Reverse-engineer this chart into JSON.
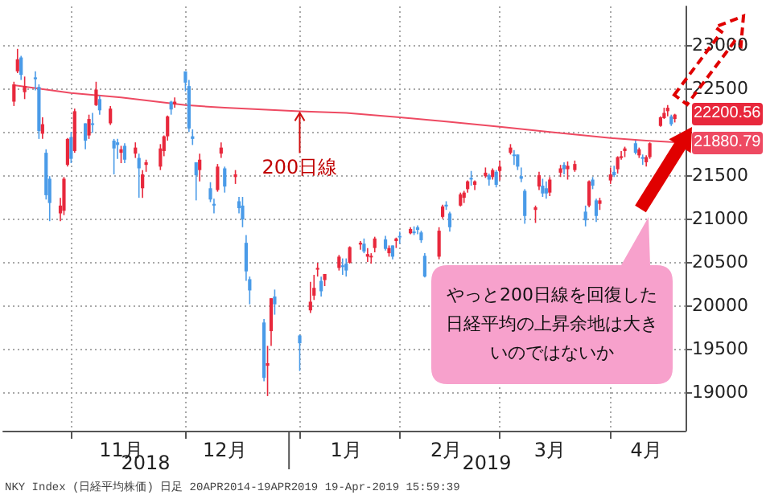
{
  "chart_data": {
    "type": "candlestick",
    "x": [
      "2018-10-16",
      "2018-10-17",
      "2018-10-18",
      "2018-10-19",
      "2018-10-22",
      "2018-10-23",
      "2018-10-24",
      "2018-10-25",
      "2018-10-26",
      "2018-10-29",
      "2018-10-30",
      "2018-10-31",
      "2018-11-01",
      "2018-11-02",
      "2018-11-05",
      "2018-11-06",
      "2018-11-07",
      "2018-11-08",
      "2018-11-09",
      "2018-11-12",
      "2018-11-13",
      "2018-11-14",
      "2018-11-15",
      "2018-11-16",
      "2018-11-19",
      "2018-11-20",
      "2018-11-21",
      "2018-11-22",
      "2018-11-26",
      "2018-11-27",
      "2018-11-28",
      "2018-11-29",
      "2018-11-30",
      "2018-12-03",
      "2018-12-04",
      "2018-12-05",
      "2018-12-06",
      "2018-12-07",
      "2018-12-10",
      "2018-12-11",
      "2018-12-12",
      "2018-12-13",
      "2018-12-14",
      "2018-12-17",
      "2018-12-18",
      "2018-12-19",
      "2018-12-20",
      "2018-12-21",
      "2018-12-25",
      "2018-12-26",
      "2018-12-27",
      "2018-12-28",
      "2019-01-04",
      "2019-01-07",
      "2019-01-08",
      "2019-01-09",
      "2019-01-10",
      "2019-01-11",
      "2019-01-15",
      "2019-01-16",
      "2019-01-17",
      "2019-01-18",
      "2019-01-21",
      "2019-01-22",
      "2019-01-23",
      "2019-01-24",
      "2019-01-25",
      "2019-01-28",
      "2019-01-29",
      "2019-01-30",
      "2019-01-31",
      "2019-02-01",
      "2019-02-04",
      "2019-02-05",
      "2019-02-06",
      "2019-02-07",
      "2019-02-08",
      "2019-02-12",
      "2019-02-13",
      "2019-02-14",
      "2019-02-15",
      "2019-02-18",
      "2019-02-19",
      "2019-02-20",
      "2019-02-21",
      "2019-02-22",
      "2019-02-25",
      "2019-02-26",
      "2019-02-27",
      "2019-02-28",
      "2019-03-01",
      "2019-03-04",
      "2019-03-05",
      "2019-03-06",
      "2019-03-07",
      "2019-03-08",
      "2019-03-11",
      "2019-03-12",
      "2019-03-13",
      "2019-03-14",
      "2019-03-15",
      "2019-03-18",
      "2019-03-19",
      "2019-03-20",
      "2019-03-22",
      "2019-03-25",
      "2019-03-26",
      "2019-03-27",
      "2019-03-28",
      "2019-03-29",
      "2019-04-01",
      "2019-04-02",
      "2019-04-03",
      "2019-04-04",
      "2019-04-05",
      "2019-04-08",
      "2019-04-09",
      "2019-04-10",
      "2019-04-11",
      "2019-04-12",
      "2019-04-15",
      "2019-04-16",
      "2019-04-17",
      "2019-04-18",
      "2019-04-19"
    ],
    "series": [
      {
        "ohlc": [
          [
            22350,
            22580,
            22300,
            22550
          ],
          [
            22700,
            22960,
            22680,
            22840
          ],
          [
            22860,
            22880,
            22600,
            22660
          ],
          [
            22460,
            22640,
            22380,
            22530
          ],
          [
            22630,
            22700,
            22480,
            22610
          ],
          [
            22520,
            22550,
            21920,
            22010
          ],
          [
            21980,
            22170,
            21920,
            22090
          ],
          [
            21760,
            21800,
            21220,
            21270
          ],
          [
            21460,
            21490,
            20970,
            21180
          ],
          [
            21060,
            21240,
            20970,
            21150
          ],
          [
            21090,
            21480,
            21040,
            21460
          ],
          [
            21620,
            21930,
            21600,
            21920
          ],
          [
            21940,
            22000,
            21640,
            21690
          ],
          [
            21780,
            22270,
            21760,
            22240
          ],
          [
            22100,
            22100,
            21800,
            21900
          ],
          [
            21960,
            22200,
            21920,
            22150
          ],
          [
            22100,
            22220,
            21990,
            22090
          ],
          [
            22310,
            22580,
            22300,
            22490
          ],
          [
            22380,
            22420,
            22200,
            22250
          ],
          [
            22100,
            22300,
            22080,
            22270
          ],
          [
            21900,
            21920,
            21510,
            21810
          ],
          [
            21880,
            21920,
            21690,
            21850
          ],
          [
            21760,
            21840,
            21640,
            21800
          ],
          [
            21840,
            21870,
            21640,
            21680
          ],
          [
            21750,
            21880,
            21700,
            21820
          ],
          [
            21700,
            21750,
            21240,
            21580
          ],
          [
            21350,
            21560,
            21240,
            21510
          ],
          [
            21620,
            21680,
            21540,
            21650
          ],
          [
            21600,
            21860,
            21560,
            21810
          ],
          [
            21780,
            21960,
            21720,
            21950
          ],
          [
            21950,
            22190,
            21900,
            22180
          ],
          [
            22350,
            22360,
            22200,
            22260
          ],
          [
            22320,
            22400,
            22280,
            22350
          ],
          [
            22700,
            22700,
            22470,
            22570
          ],
          [
            22530,
            22600,
            22000,
            22040
          ],
          [
            21950,
            22030,
            21850,
            21920
          ],
          [
            21650,
            21650,
            21210,
            21500
          ],
          [
            21560,
            21750,
            21430,
            21680
          ],
          [
            21350,
            21420,
            21190,
            21220
          ],
          [
            21170,
            21230,
            21060,
            21150
          ],
          [
            21330,
            21630,
            21310,
            21600
          ],
          [
            21750,
            21880,
            21700,
            21820
          ],
          [
            21580,
            21600,
            21300,
            21370
          ],
          [
            21480,
            21560,
            21400,
            21510
          ],
          [
            21200,
            21250,
            21060,
            21120
          ],
          [
            21150,
            21250,
            20900,
            20990
          ],
          [
            20720,
            20810,
            20280,
            20390
          ],
          [
            20300,
            20330,
            20010,
            20170
          ],
          [
            19800,
            19840,
            19120,
            19160
          ],
          [
            19300,
            19530,
            18950,
            19330
          ],
          [
            19700,
            20080,
            19530,
            20080
          ],
          [
            20100,
            20180,
            19890,
            20010
          ],
          [
            19650,
            19660,
            19240,
            19560
          ],
          [
            19940,
            20270,
            19910,
            20040
          ],
          [
            20110,
            20350,
            20060,
            20200
          ],
          [
            20410,
            20490,
            20330,
            20430
          ],
          [
            20280,
            20330,
            20100,
            20160
          ],
          [
            20290,
            20360,
            20220,
            20360
          ],
          [
            20430,
            20580,
            20400,
            20560
          ],
          [
            20460,
            20540,
            20350,
            20440
          ],
          [
            20480,
            20540,
            20330,
            20400
          ],
          [
            20490,
            20680,
            20480,
            20670
          ],
          [
            20700,
            20740,
            20640,
            20720
          ],
          [
            20710,
            20770,
            20600,
            20620
          ],
          [
            20560,
            20660,
            20500,
            20590
          ],
          [
            20560,
            20600,
            20480,
            20570
          ],
          [
            20660,
            20790,
            20610,
            20770
          ],
          [
            20760,
            20800,
            20630,
            20650
          ],
          [
            20600,
            20690,
            20560,
            20660
          ],
          [
            20690,
            20690,
            20530,
            20560
          ],
          [
            20740,
            20780,
            20660,
            20770
          ],
          [
            20800,
            20850,
            20710,
            20790
          ],
          [
            20830,
            20900,
            20820,
            20880
          ],
          [
            20850,
            20910,
            20810,
            20840
          ],
          [
            20900,
            20920,
            20820,
            20870
          ],
          [
            20840,
            20860,
            20720,
            20750
          ],
          [
            20570,
            20600,
            20320,
            20330
          ],
          [
            20560,
            20900,
            20530,
            20860
          ],
          [
            21020,
            21160,
            21000,
            21140
          ],
          [
            21160,
            21200,
            21100,
            21140
          ],
          [
            21060,
            21080,
            20850,
            20900
          ],
          [
            21150,
            21300,
            21140,
            21280
          ],
          [
            21240,
            21320,
            21180,
            21300
          ],
          [
            21340,
            21440,
            21300,
            21430
          ],
          [
            21470,
            21550,
            21380,
            21460
          ],
          [
            21390,
            21440,
            21330,
            21430
          ],
          [
            21490,
            21590,
            21470,
            21530
          ],
          [
            21500,
            21520,
            21380,
            21450
          ],
          [
            21480,
            21580,
            21450,
            21560
          ],
          [
            21540,
            21560,
            21360,
            21390
          ],
          [
            21550,
            21670,
            21440,
            21600
          ],
          [
            21760,
            21860,
            21740,
            21820
          ],
          [
            21740,
            21790,
            21620,
            21730
          ],
          [
            21740,
            21740,
            21560,
            21600
          ],
          [
            21490,
            21590,
            21420,
            21460
          ],
          [
            21320,
            21340,
            20940,
            21030
          ],
          [
            21100,
            21150,
            20950,
            21130
          ],
          [
            21370,
            21540,
            21330,
            21500
          ],
          [
            21380,
            21460,
            21250,
            21290
          ],
          [
            21350,
            21430,
            21230,
            21290
          ],
          [
            21300,
            21480,
            21260,
            21450
          ],
          [
            21530,
            21620,
            21480,
            21580
          ],
          [
            21620,
            21650,
            21510,
            21570
          ],
          [
            21570,
            21660,
            21450,
            21610
          ],
          [
            21560,
            21670,
            21540,
            21630
          ],
          [
            21080,
            21150,
            20910,
            20980
          ],
          [
            21150,
            21440,
            21130,
            21430
          ],
          [
            21450,
            21480,
            21340,
            21380
          ],
          [
            21210,
            21230,
            20960,
            21030
          ],
          [
            21170,
            21240,
            21100,
            21210
          ],
          [
            21440,
            21590,
            21400,
            21510
          ],
          [
            21540,
            21610,
            21480,
            21500
          ],
          [
            21570,
            21720,
            21520,
            21710
          ],
          [
            21700,
            21780,
            21680,
            21720
          ],
          [
            21780,
            21830,
            21710,
            21810
          ],
          [
            21870,
            21900,
            21740,
            21760
          ],
          [
            21730,
            21820,
            21700,
            21800
          ],
          [
            21710,
            21740,
            21620,
            21690
          ],
          [
            21650,
            21730,
            21600,
            21710
          ],
          [
            21710,
            21880,
            21690,
            21870
          ],
          [
            22070,
            22180,
            22060,
            22170
          ],
          [
            22160,
            22280,
            22150,
            22220
          ],
          [
            22240,
            22310,
            22180,
            22280
          ],
          [
            22180,
            22200,
            22070,
            22090
          ],
          [
            22150,
            22210,
            22110,
            22200.56
          ]
        ],
        "colors": [
          "#e8283c",
          "#e8283c",
          "#4a9be8",
          "#e8283c",
          "#4a9be8",
          "#4a9be8",
          "#e8283c",
          "#4a9be8",
          "#4a9be8",
          "#e8283c",
          "#e8283c",
          "#e8283c",
          "#4a9be8",
          "#e8283c",
          "#4a9be8",
          "#e8283c",
          "#4a9be8",
          "#e8283c",
          "#4a9be8",
          "#e8283c",
          "#4a9be8",
          "#4a9be8",
          "#e8283c",
          "#4a9be8",
          "#e8283c",
          "#4a9be8",
          "#e8283c",
          "#e8283c",
          "#e8283c",
          "#e8283c",
          "#e8283c",
          "#4a9be8",
          "#e8283c",
          "#4a9be8",
          "#4a9be8",
          "#4a9be8",
          "#4a9be8",
          "#e8283c",
          "#4a9be8",
          "#4a9be8",
          "#e8283c",
          "#e8283c",
          "#4a9be8",
          "#e8283c",
          "#4a9be8",
          "#4a9be8",
          "#4a9be8",
          "#4a9be8",
          "#4a9be8",
          "#e8283c",
          "#e8283c",
          "#4a9be8",
          "#4a9be8",
          "#e8283c",
          "#e8283c",
          "#e8283c",
          "#4a9be8",
          "#e8283c",
          "#e8283c",
          "#4a9be8",
          "#4a9be8",
          "#e8283c",
          "#e8283c",
          "#4a9be8",
          "#e8283c",
          "#e8283c",
          "#e8283c",
          "#4a9be8",
          "#e8283c",
          "#4a9be8",
          "#e8283c",
          "#4a9be8",
          "#e8283c",
          "#4a9be8",
          "#4a9be8",
          "#4a9be8",
          "#4a9be8",
          "#e8283c",
          "#e8283c",
          "#4a9be8",
          "#4a9be8",
          "#e8283c",
          "#e8283c",
          "#e8283c",
          "#4a9be8",
          "#e8283c",
          "#e8283c",
          "#4a9be8",
          "#e8283c",
          "#4a9be8",
          "#e8283c",
          "#e8283c",
          "#4a9be8",
          "#4a9be8",
          "#4a9be8",
          "#4a9be8",
          "#e8283c",
          "#e8283c",
          "#4a9be8",
          "#4a9be8",
          "#e8283c",
          "#e8283c",
          "#4a9be8",
          "#e8283c",
          "#e8283c",
          "#4a9be8",
          "#e8283c",
          "#4a9be8",
          "#4a9be8",
          "#e8283c",
          "#e8283c",
          "#4a9be8",
          "#e8283c",
          "#e8283c",
          "#e8283c",
          "#4a9be8",
          "#e8283c",
          "#4a9be8",
          "#e8283c",
          "#e8283c",
          "#e8283c",
          "#e8283c",
          "#e8283c",
          "#4a9be8",
          "#e8283c"
        ],
        "value_labels": [
          null,
          null,
          null,
          null,
          null,
          null,
          null,
          null,
          null,
          null,
          null,
          null,
          null,
          null,
          null,
          null,
          null,
          null,
          null,
          null,
          null,
          null,
          null,
          null,
          null,
          null,
          null,
          null,
          null,
          null,
          null,
          null,
          null,
          null,
          null,
          null,
          null,
          null,
          null,
          null,
          null,
          null,
          null,
          null,
          null,
          null,
          null,
          null,
          null,
          null,
          null,
          null,
          null,
          null,
          null,
          null,
          null,
          null,
          null,
          null,
          null,
          null,
          null,
          null,
          null,
          null,
          null,
          null,
          null,
          null,
          null,
          null,
          null,
          null,
          null,
          null,
          null,
          null,
          null,
          null,
          null,
          null,
          null,
          null,
          null,
          null,
          null,
          null,
          null,
          null,
          null,
          null,
          null,
          null,
          null,
          null,
          null,
          null,
          null,
          null,
          null,
          null,
          null,
          null,
          null,
          null,
          null,
          null,
          null,
          null,
          null,
          null,
          null,
          null,
          null,
          null,
          null,
          null,
          null,
          null,
          null,
          null,
          null,
          null,
          "22200.56"
        ]
      },
      {
        "type": "line",
        "color": "#ee4a62",
        "x": [
          "2018-10-16",
          "2018-11-01",
          "2018-11-15",
          "2018-12-03",
          "2018-12-14",
          "2019-01-04",
          "2019-01-17",
          "2019-02-01",
          "2019-02-14",
          "2019-03-01",
          "2019-03-15",
          "2019-04-01",
          "2019-04-11",
          "2019-04-19"
        ],
        "values": [
          22540,
          22450,
          22400,
          22310,
          22280,
          22240,
          22220,
          22170,
          22120,
          22060,
          22000,
          21930,
          21900,
          21880.79
        ],
        "value_labels": [
          null,
          null,
          null,
          null,
          null,
          null,
          null,
          null,
          null,
          null,
          null,
          null,
          null,
          "21880.79"
        ]
      }
    ],
    "xlim": [
      "2018-10-13",
      "2019-04-22"
    ],
    "ylim": [
      18550,
      23450
    ],
    "yticks": [
      19000,
      19500,
      20000,
      20500,
      21000,
      21500,
      {
        "value": 22000,
        "label": null
      },
      22500,
      23000
    ],
    "xticks": [
      {
        "value": "2018-11-01",
        "label": null
      },
      {
        "value": "2018-11-15",
        "label": "11月"
      },
      {
        "value": "2018-12-03",
        "label": null
      },
      {
        "value": "2018-12-14",
        "label": "12月"
      },
      {
        "value": "2019-01-04",
        "label": null
      },
      {
        "value": "2019-01-17",
        "label": "1月"
      },
      {
        "value": "2019-02-01",
        "label": null
      },
      {
        "value": "2019-02-14",
        "label": "2月"
      },
      {
        "value": "2019-03-01",
        "label": null
      },
      {
        "value": "2019-03-15",
        "label": "3月"
      },
      {
        "value": "2019-04-01",
        "label": null
      },
      {
        "value": "2019-04-11",
        "label": "4月"
      }
    ],
    "grid": true,
    "annotations": [
      {
        "text": "200日線",
        "x": "2019-01-04",
        "y": 22240
      },
      "やっと200日線を回復した日経平均の上昇余地は大きいのではないか",
      "2018",
      "2019",
      "NKY Index (日経平均株価)  日足 20APR2014-19APR2019   19-Apr-2019 15:59:39"
    ]
  }
}
